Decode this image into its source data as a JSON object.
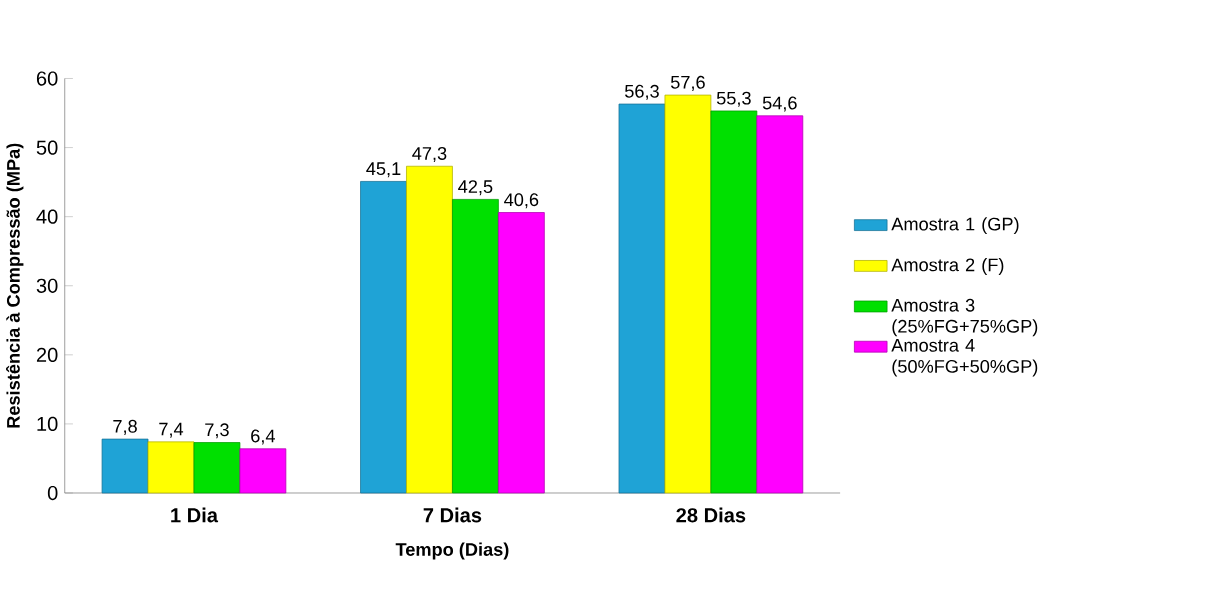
{
  "chart_data": {
    "type": "bar",
    "xlabel": "Tempo (Dias)",
    "ylabel": "Resistência à Compressão (MPa)",
    "categories": [
      "1 Dia",
      "7 Dias",
      "28 Dias"
    ],
    "ylim": [
      0,
      60
    ],
    "yticks": [
      0,
      10,
      20,
      30,
      40,
      50,
      60
    ],
    "grid": false,
    "legend": "right",
    "series": [
      {
        "name": "Amostra 1 (GP)",
        "color": "#1fa3d6",
        "values": [
          7.8,
          45.1,
          56.3
        ],
        "value_labels": [
          "7,8",
          "45,1",
          "56,3"
        ]
      },
      {
        "name": "Amostra 2 (F)",
        "color": "#ffff00",
        "values": [
          7.4,
          47.3,
          57.6
        ],
        "value_labels": [
          "7,4",
          "47,3",
          "57,6"
        ]
      },
      {
        "name": "Amostra 3 (25%FG+75%GP)",
        "color": "#00e000",
        "values": [
          7.3,
          42.5,
          55.3
        ],
        "value_labels": [
          "7,3",
          "42,5",
          "55,3"
        ]
      },
      {
        "name": "Amostra 4 (50%FG+50%GP)",
        "color": "#ff00ff",
        "values": [
          6.4,
          40.6,
          54.6
        ],
        "value_labels": [
          "6,4",
          "40,6",
          "54,6"
        ]
      }
    ]
  }
}
